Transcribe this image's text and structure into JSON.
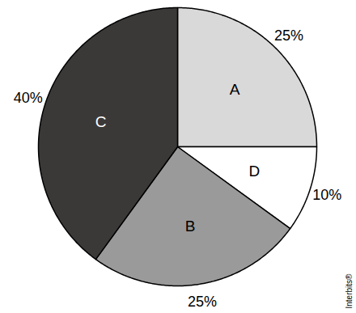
{
  "chart_data": {
    "type": "pie",
    "categories": [
      "A",
      "D",
      "B",
      "C"
    ],
    "values": [
      25,
      10,
      25,
      40
    ],
    "value_labels": [
      "25%",
      "10%",
      "25%",
      "40%"
    ],
    "colors": [
      "#d9d9d9",
      "#ffffff",
      "#9a9a9a",
      "#3b3938"
    ],
    "data_labels": true,
    "source": "Interbits®"
  }
}
